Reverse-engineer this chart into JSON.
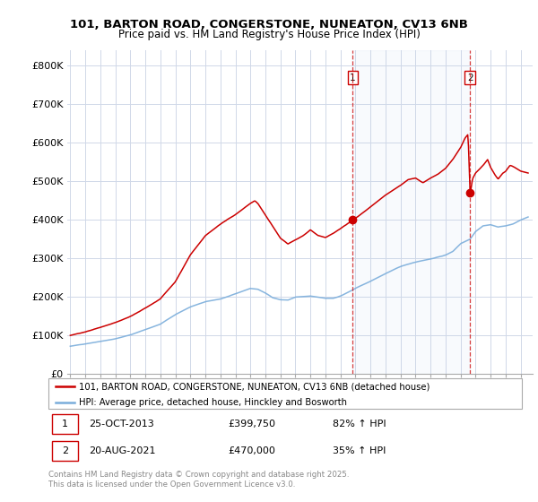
{
  "title_line1": "101, BARTON ROAD, CONGERSTONE, NUNEATON, CV13 6NB",
  "title_line2": "Price paid vs. HM Land Registry's House Price Index (HPI)",
  "ylabel_ticks": [
    "£0",
    "£100K",
    "£200K",
    "£300K",
    "£400K",
    "£500K",
    "£600K",
    "£700K",
    "£800K"
  ],
  "ytick_values": [
    0,
    100000,
    200000,
    300000,
    400000,
    500000,
    600000,
    700000,
    800000
  ],
  "ylim": [
    0,
    840000
  ],
  "xlim_start": 1994.8,
  "xlim_end": 2025.8,
  "red_color": "#cc0000",
  "blue_color": "#7aaddb",
  "grid_color": "#d0d8e8",
  "bg_color": "#ffffff",
  "purchase1_x": 2013.82,
  "purchase1_y": 399750,
  "purchase2_x": 2021.64,
  "purchase2_y": 470000,
  "legend_line1": "101, BARTON ROAD, CONGERSTONE, NUNEATON, CV13 6NB (detached house)",
  "legend_line2": "HPI: Average price, detached house, Hinckley and Bosworth",
  "table_row1": [
    "1",
    "25-OCT-2013",
    "£399,750",
    "82% ↑ HPI"
  ],
  "table_row2": [
    "2",
    "20-AUG-2021",
    "£470,000",
    "35% ↑ HPI"
  ],
  "footer": "Contains HM Land Registry data © Crown copyright and database right 2025.\nThis data is licensed under the Open Government Licence v3.0."
}
